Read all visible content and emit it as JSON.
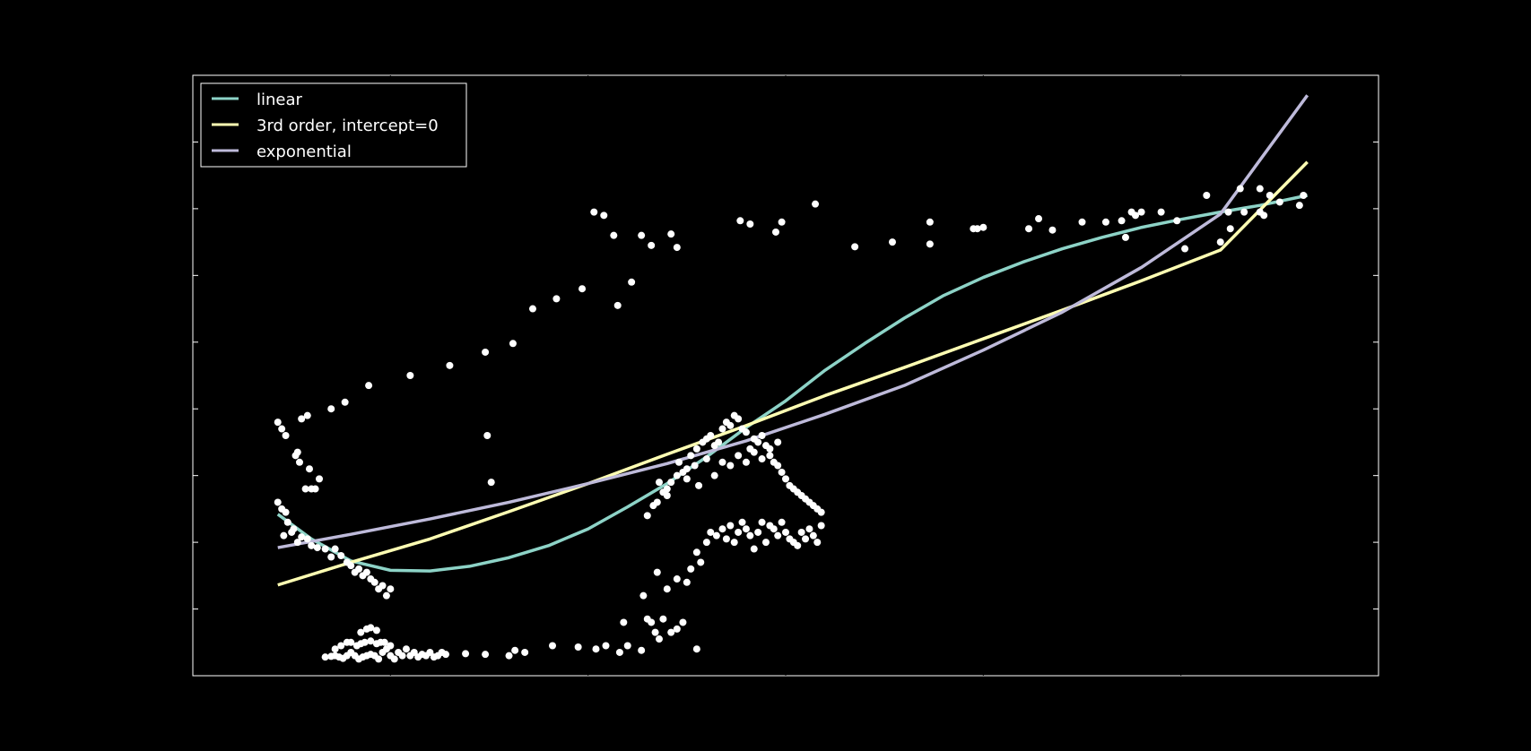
{
  "chart_data": {
    "type": "scatter",
    "title": "",
    "xlabel": "",
    "ylabel": "",
    "xlim": [
      0,
      6
    ],
    "ylim": [
      0,
      9
    ],
    "grid": false,
    "legend_position": "top-left",
    "colors": {
      "background": "#000000",
      "points": "#ffffff",
      "linear": "#8dd3c7",
      "cubic": "#ffffb3",
      "exponential": "#bebada"
    },
    "points": [
      [
        0.43,
        3.8
      ],
      [
        0.45,
        3.7
      ],
      [
        0.47,
        3.6
      ],
      [
        0.52,
        3.3
      ],
      [
        0.54,
        3.2
      ],
      [
        0.53,
        3.35
      ],
      [
        0.57,
        2.8
      ],
      [
        0.6,
        2.8
      ],
      [
        0.62,
        2.8
      ],
      [
        0.59,
        3.1
      ],
      [
        0.64,
        2.95
      ],
      [
        0.55,
        3.85
      ],
      [
        0.58,
        3.9
      ],
      [
        0.7,
        4.0
      ],
      [
        0.77,
        4.1
      ],
      [
        0.89,
        4.35
      ],
      [
        1.1,
        4.5
      ],
      [
        1.3,
        4.65
      ],
      [
        1.48,
        4.85
      ],
      [
        1.62,
        4.98
      ],
      [
        1.72,
        5.5
      ],
      [
        1.84,
        5.65
      ],
      [
        1.97,
        5.8
      ],
      [
        2.15,
        5.55
      ],
      [
        2.22,
        5.9
      ],
      [
        2.03,
        6.95
      ],
      [
        2.08,
        6.9
      ],
      [
        2.13,
        6.6
      ],
      [
        2.27,
        6.6
      ],
      [
        2.32,
        6.45
      ],
      [
        2.42,
        6.62
      ],
      [
        2.45,
        6.42
      ],
      [
        2.77,
        6.82
      ],
      [
        2.82,
        6.77
      ],
      [
        2.95,
        6.65
      ],
      [
        2.98,
        6.8
      ],
      [
        3.15,
        7.07
      ],
      [
        3.35,
        6.43
      ],
      [
        3.54,
        6.5
      ],
      [
        3.73,
        6.8
      ],
      [
        3.73,
        6.47
      ],
      [
        3.95,
        6.7
      ],
      [
        3.97,
        6.7
      ],
      [
        4.0,
        6.72
      ],
      [
        4.23,
        6.7
      ],
      [
        4.28,
        6.85
      ],
      [
        4.35,
        6.68
      ],
      [
        4.5,
        6.8
      ],
      [
        4.62,
        6.8
      ],
      [
        4.7,
        6.82
      ],
      [
        4.75,
        6.95
      ],
      [
        4.77,
        6.9
      ],
      [
        4.8,
        6.95
      ],
      [
        4.72,
        6.57
      ],
      [
        4.9,
        6.95
      ],
      [
        4.98,
        6.82
      ],
      [
        5.02,
        6.4
      ],
      [
        5.13,
        7.2
      ],
      [
        5.2,
        6.5
      ],
      [
        5.24,
        6.95
      ],
      [
        5.25,
        6.7
      ],
      [
        5.3,
        7.3
      ],
      [
        5.32,
        6.95
      ],
      [
        5.4,
        6.95
      ],
      [
        5.4,
        7.3
      ],
      [
        5.42,
        6.9
      ],
      [
        5.45,
        7.2
      ],
      [
        5.5,
        7.1
      ],
      [
        5.6,
        7.05
      ],
      [
        5.62,
        7.2
      ],
      [
        1.49,
        3.6
      ],
      [
        1.51,
        2.9
      ],
      [
        2.2,
        0.45
      ],
      [
        2.18,
        0.8
      ],
      [
        2.3,
        0.85
      ],
      [
        2.55,
        0.4
      ],
      [
        0.43,
        2.6
      ],
      [
        0.45,
        2.5
      ],
      [
        0.47,
        2.45
      ],
      [
        0.46,
        2.1
      ],
      [
        0.5,
        2.15
      ],
      [
        0.48,
        2.3
      ],
      [
        0.51,
        2.2
      ],
      [
        0.53,
        2.0
      ],
      [
        0.55,
        2.08
      ],
      [
        0.58,
        2.05
      ],
      [
        0.6,
        1.95
      ],
      [
        0.63,
        1.92
      ],
      [
        0.67,
        1.9
      ],
      [
        0.7,
        1.78
      ],
      [
        0.72,
        1.9
      ],
      [
        0.75,
        1.8
      ],
      [
        0.78,
        1.7
      ],
      [
        0.8,
        1.65
      ],
      [
        0.82,
        1.55
      ],
      [
        0.84,
        1.6
      ],
      [
        0.86,
        1.5
      ],
      [
        0.88,
        1.55
      ],
      [
        0.9,
        1.45
      ],
      [
        0.92,
        1.4
      ],
      [
        0.94,
        1.3
      ],
      [
        0.96,
        1.35
      ],
      [
        0.98,
        1.2
      ],
      [
        1.0,
        1.3
      ],
      [
        0.67,
        0.28
      ],
      [
        0.7,
        0.29
      ],
      [
        0.72,
        0.3
      ],
      [
        0.74,
        0.28
      ],
      [
        0.76,
        0.26
      ],
      [
        0.78,
        0.3
      ],
      [
        0.8,
        0.35
      ],
      [
        0.82,
        0.3
      ],
      [
        0.84,
        0.25
      ],
      [
        0.86,
        0.28
      ],
      [
        0.88,
        0.3
      ],
      [
        0.9,
        0.32
      ],
      [
        0.92,
        0.3
      ],
      [
        0.94,
        0.25
      ],
      [
        0.96,
        0.35
      ],
      [
        0.98,
        0.4
      ],
      [
        1.0,
        0.3
      ],
      [
        1.02,
        0.25
      ],
      [
        1.04,
        0.35
      ],
      [
        1.06,
        0.3
      ],
      [
        1.08,
        0.4
      ],
      [
        1.1,
        0.3
      ],
      [
        1.12,
        0.35
      ],
      [
        1.14,
        0.28
      ],
      [
        1.16,
        0.32
      ],
      [
        1.18,
        0.3
      ],
      [
        1.2,
        0.35
      ],
      [
        1.22,
        0.28
      ],
      [
        1.24,
        0.3
      ],
      [
        1.26,
        0.35
      ],
      [
        1.28,
        0.32
      ],
      [
        0.72,
        0.4
      ],
      [
        0.75,
        0.45
      ],
      [
        0.78,
        0.5
      ],
      [
        0.8,
        0.5
      ],
      [
        0.83,
        0.45
      ],
      [
        0.85,
        0.48
      ],
      [
        0.87,
        0.5
      ],
      [
        0.9,
        0.52
      ],
      [
        0.93,
        0.48
      ],
      [
        0.95,
        0.5
      ],
      [
        0.97,
        0.5
      ],
      [
        1.0,
        0.45
      ],
      [
        0.85,
        0.65
      ],
      [
        0.88,
        0.7
      ],
      [
        0.9,
        0.72
      ],
      [
        0.93,
        0.68
      ],
      [
        1.38,
        0.33
      ],
      [
        1.48,
        0.32
      ],
      [
        1.6,
        0.3
      ],
      [
        1.63,
        0.38
      ],
      [
        1.68,
        0.35
      ],
      [
        1.82,
        0.45
      ],
      [
        1.95,
        0.43
      ],
      [
        2.04,
        0.4
      ],
      [
        2.09,
        0.45
      ],
      [
        2.16,
        0.35
      ],
      [
        2.27,
        0.38
      ],
      [
        2.32,
        0.8
      ],
      [
        2.34,
        0.65
      ],
      [
        2.36,
        0.55
      ],
      [
        2.38,
        0.85
      ],
      [
        2.42,
        0.65
      ],
      [
        2.45,
        0.7
      ],
      [
        2.48,
        0.8
      ],
      [
        2.28,
        1.2
      ],
      [
        2.35,
        1.55
      ],
      [
        2.4,
        1.3
      ],
      [
        2.45,
        1.45
      ],
      [
        2.5,
        1.4
      ],
      [
        2.52,
        1.6
      ],
      [
        2.55,
        1.85
      ],
      [
        2.57,
        1.7
      ],
      [
        2.6,
        2.0
      ],
      [
        2.62,
        2.15
      ],
      [
        2.65,
        2.1
      ],
      [
        2.68,
        2.2
      ],
      [
        2.7,
        2.05
      ],
      [
        2.72,
        2.25
      ],
      [
        2.74,
        2.0
      ],
      [
        2.76,
        2.15
      ],
      [
        2.78,
        2.3
      ],
      [
        2.8,
        2.2
      ],
      [
        2.82,
        2.1
      ],
      [
        2.84,
        1.9
      ],
      [
        2.86,
        2.15
      ],
      [
        2.88,
        2.3
      ],
      [
        2.9,
        2.0
      ],
      [
        2.92,
        2.25
      ],
      [
        2.94,
        2.2
      ],
      [
        2.96,
        2.1
      ],
      [
        2.98,
        2.3
      ],
      [
        3.0,
        2.15
      ],
      [
        3.02,
        2.05
      ],
      [
        3.04,
        2.0
      ],
      [
        3.06,
        1.95
      ],
      [
        3.08,
        2.15
      ],
      [
        3.1,
        2.05
      ],
      [
        3.12,
        2.2
      ],
      [
        3.14,
        2.1
      ],
      [
        3.16,
        2.0
      ],
      [
        3.18,
        2.25
      ],
      [
        2.3,
        2.4
      ],
      [
        2.33,
        2.55
      ],
      [
        2.35,
        2.6
      ],
      [
        2.38,
        2.75
      ],
      [
        2.4,
        2.8
      ],
      [
        2.42,
        2.9
      ],
      [
        2.45,
        3.0
      ],
      [
        2.48,
        3.05
      ],
      [
        2.5,
        3.1
      ],
      [
        2.52,
        3.3
      ],
      [
        2.55,
        3.4
      ],
      [
        2.58,
        3.5
      ],
      [
        2.6,
        3.55
      ],
      [
        2.62,
        3.6
      ],
      [
        2.64,
        3.45
      ],
      [
        2.66,
        3.5
      ],
      [
        2.68,
        3.7
      ],
      [
        2.7,
        3.8
      ],
      [
        2.72,
        3.75
      ],
      [
        2.74,
        3.9
      ],
      [
        2.76,
        3.85
      ],
      [
        2.78,
        3.7
      ],
      [
        2.8,
        3.65
      ],
      [
        2.82,
        3.4
      ],
      [
        2.84,
        3.55
      ],
      [
        2.86,
        3.5
      ],
      [
        2.88,
        3.6
      ],
      [
        2.9,
        3.45
      ],
      [
        2.92,
        3.3
      ],
      [
        2.94,
        3.2
      ],
      [
        2.96,
        3.15
      ],
      [
        2.98,
        3.05
      ],
      [
        3.0,
        2.95
      ],
      [
        3.02,
        2.85
      ],
      [
        3.04,
        2.8
      ],
      [
        3.06,
        2.75
      ],
      [
        3.08,
        2.7
      ],
      [
        3.1,
        2.65
      ],
      [
        3.12,
        2.6
      ],
      [
        3.14,
        2.55
      ],
      [
        3.16,
        2.5
      ],
      [
        3.18,
        2.45
      ],
      [
        2.36,
        2.9
      ],
      [
        2.4,
        2.7
      ],
      [
        2.46,
        3.2
      ],
      [
        2.5,
        2.95
      ],
      [
        2.54,
        3.15
      ],
      [
        2.56,
        2.85
      ],
      [
        2.6,
        3.25
      ],
      [
        2.64,
        3.0
      ],
      [
        2.68,
        3.2
      ],
      [
        2.72,
        3.15
      ],
      [
        2.76,
        3.3
      ],
      [
        2.8,
        3.2
      ],
      [
        2.84,
        3.35
      ],
      [
        2.88,
        3.25
      ],
      [
        2.92,
        3.4
      ],
      [
        2.96,
        3.5
      ]
    ],
    "series": [
      {
        "name": "linear",
        "color": "#8dd3c7",
        "x": [
          0.43,
          0.6,
          0.8,
          1.0,
          1.2,
          1.4,
          1.6,
          1.8,
          2.0,
          2.2,
          2.4,
          2.6,
          2.8,
          3.0,
          3.2,
          3.4,
          3.6,
          3.8,
          4.0,
          4.2,
          4.4,
          4.6,
          4.8,
          5.0,
          5.2,
          5.4,
          5.64
        ],
        "y": [
          2.42,
          2.05,
          1.72,
          1.58,
          1.57,
          1.64,
          1.77,
          1.95,
          2.2,
          2.53,
          2.88,
          3.28,
          3.72,
          4.12,
          4.58,
          4.98,
          5.36,
          5.7,
          5.97,
          6.2,
          6.4,
          6.57,
          6.72,
          6.84,
          6.95,
          7.05,
          7.2
        ]
      },
      {
        "name": "3rd order, intercept=0",
        "color": "#ffffb3",
        "x": [
          0.43,
          0.8,
          1.2,
          1.6,
          2.0,
          2.4,
          2.8,
          3.2,
          3.6,
          4.0,
          4.4,
          4.8,
          5.2,
          5.64
        ],
        "y": [
          1.36,
          1.7,
          2.05,
          2.46,
          2.88,
          3.32,
          3.75,
          4.2,
          4.62,
          5.05,
          5.48,
          5.92,
          6.38,
          7.7
        ]
      },
      {
        "name": "exponential",
        "color": "#bebada",
        "x": [
          0.43,
          0.8,
          1.2,
          1.6,
          2.0,
          2.4,
          2.8,
          3.2,
          3.6,
          4.0,
          4.4,
          4.8,
          5.2,
          5.64
        ],
        "y": [
          1.92,
          2.12,
          2.35,
          2.6,
          2.88,
          3.18,
          3.52,
          3.92,
          4.35,
          4.88,
          5.45,
          6.12,
          6.92,
          8.7
        ]
      }
    ]
  },
  "legend": {
    "items": [
      {
        "label": "linear",
        "color": "#8dd3c7"
      },
      {
        "label": "3rd order, intercept=0",
        "color": "#ffffb3"
      },
      {
        "label": "exponential",
        "color": "#bebada"
      }
    ]
  }
}
